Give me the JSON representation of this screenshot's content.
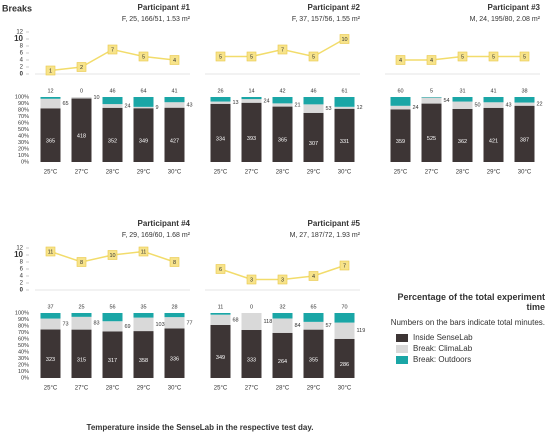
{
  "breaks_label": "Breaks",
  "xlabel": "Temperature inside the SenseLab in the respective test day.",
  "legend": {
    "title": "Percentage of the total experiment time",
    "note": "Numbers on the bars indicate total minutes."
  },
  "breaks_axis": {
    "ylim": [
      0,
      12
    ],
    "yticks": [
      0,
      2,
      4,
      6,
      8,
      10,
      12
    ]
  },
  "share_axis": {
    "ylim": [
      0,
      100
    ],
    "yticks": [
      {
        "value": 0,
        "label": "0%"
      },
      {
        "value": 10,
        "label": "10%"
      },
      {
        "value": 20,
        "label": "20%"
      },
      {
        "value": 30,
        "label": "30%"
      },
      {
        "value": 40,
        "label": "40%"
      },
      {
        "value": 50,
        "label": "50%"
      },
      {
        "value": 60,
        "label": "60%"
      },
      {
        "value": 70,
        "label": "70%"
      },
      {
        "value": 80,
        "label": "80%"
      },
      {
        "value": 90,
        "label": "90%"
      },
      {
        "value": 100,
        "label": "100%"
      }
    ]
  },
  "chart_data": [
    {
      "type": "bar",
      "title": "Participant #1",
      "subtitle": "F, 25, 166/51, 1.53 m²",
      "categories": [
        "25°C",
        "27°C",
        "28°C",
        "29°C",
        "30°C"
      ],
      "line": {
        "color": "#f2dc6b",
        "values": [
          1,
          2,
          7,
          5,
          4
        ]
      },
      "series": [
        {
          "name": "Inside SenseLab",
          "color": "#3d3535",
          "values": [
            365,
            418,
            352,
            349,
            427
          ]
        },
        {
          "name": "Break: ClimaLab",
          "color": "#d9d9d9",
          "values": [
            65,
            10,
            24,
            9,
            43
          ]
        },
        {
          "name": "Break: Outdoors",
          "color": "#1aa6a6",
          "values": [
            12,
            0,
            46,
            64,
            41
          ]
        }
      ]
    },
    {
      "type": "bar",
      "title": "Participant #2",
      "subtitle": "F, 37, 157/56, 1.55 m²",
      "categories": [
        "25°C",
        "27°C",
        "28°C",
        "29°C",
        "30°C"
      ],
      "line": {
        "color": "#f2dc6b",
        "values": [
          5,
          5,
          7,
          5,
          10
        ]
      },
      "series": [
        {
          "name": "Inside SenseLab",
          "color": "#3d3535",
          "values": [
            334,
            393,
            365,
            307,
            331
          ]
        },
        {
          "name": "Break: ClimaLab",
          "color": "#d9d9d9",
          "values": [
            13,
            24,
            21,
            53,
            12
          ]
        },
        {
          "name": "Break: Outdoors",
          "color": "#1aa6a6",
          "values": [
            26,
            14,
            42,
            46,
            61
          ]
        }
      ]
    },
    {
      "type": "bar",
      "title": "Participant #3",
      "subtitle": "M, 24, 195/80, 2.08 m²",
      "categories": [
        "25°C",
        "27°C",
        "28°C",
        "29°C",
        "30°C"
      ],
      "line": {
        "color": "#f2dc6b",
        "values": [
          4,
          4,
          5,
          5,
          5
        ]
      },
      "series": [
        {
          "name": "Inside SenseLab",
          "color": "#3d3535",
          "values": [
            359,
            525,
            362,
            421,
            387
          ]
        },
        {
          "name": "Break: ClimaLab",
          "color": "#d9d9d9",
          "values": [
            24,
            54,
            50,
            43,
            22
          ]
        },
        {
          "name": "Break: Outdoors",
          "color": "#1aa6a6",
          "values": [
            60,
            5,
            31,
            41,
            38
          ]
        }
      ]
    },
    {
      "type": "bar",
      "title": "Participant #4",
      "subtitle": "F, 29, 169/60, 1.68 m²",
      "categories": [
        "25°C",
        "27°C",
        "28°C",
        "29°C",
        "30°C"
      ],
      "line": {
        "color": "#f2dc6b",
        "values": [
          11,
          8,
          10,
          11,
          8
        ]
      },
      "series": [
        {
          "name": "Inside SenseLab",
          "color": "#3d3535",
          "values": [
            323,
            315,
            317,
            358,
            336
          ]
        },
        {
          "name": "Break: ClimaLab",
          "color": "#d9d9d9",
          "values": [
            73,
            83,
            69,
            103,
            77
          ]
        },
        {
          "name": "Break: Outdoors",
          "color": "#1aa6a6",
          "values": [
            37,
            25,
            56,
            35,
            28
          ]
        }
      ]
    },
    {
      "type": "bar",
      "title": "Participant #5",
      "subtitle": "M, 27, 187/72, 1.93 m²",
      "categories": [
        "25°C",
        "27°C",
        "28°C",
        "29°C",
        "30°C"
      ],
      "line": {
        "color": "#f2dc6b",
        "values": [
          6,
          3,
          3,
          4,
          7
        ]
      },
      "series": [
        {
          "name": "Inside SenseLab",
          "color": "#3d3535",
          "values": [
            349,
            333,
            264,
            355,
            286
          ]
        },
        {
          "name": "Break: ClimaLab",
          "color": "#d9d9d9",
          "values": [
            68,
            118,
            84,
            57,
            119
          ]
        },
        {
          "name": "Break: Outdoors",
          "color": "#1aa6a6",
          "values": [
            11,
            0,
            32,
            65,
            70
          ]
        }
      ]
    }
  ]
}
